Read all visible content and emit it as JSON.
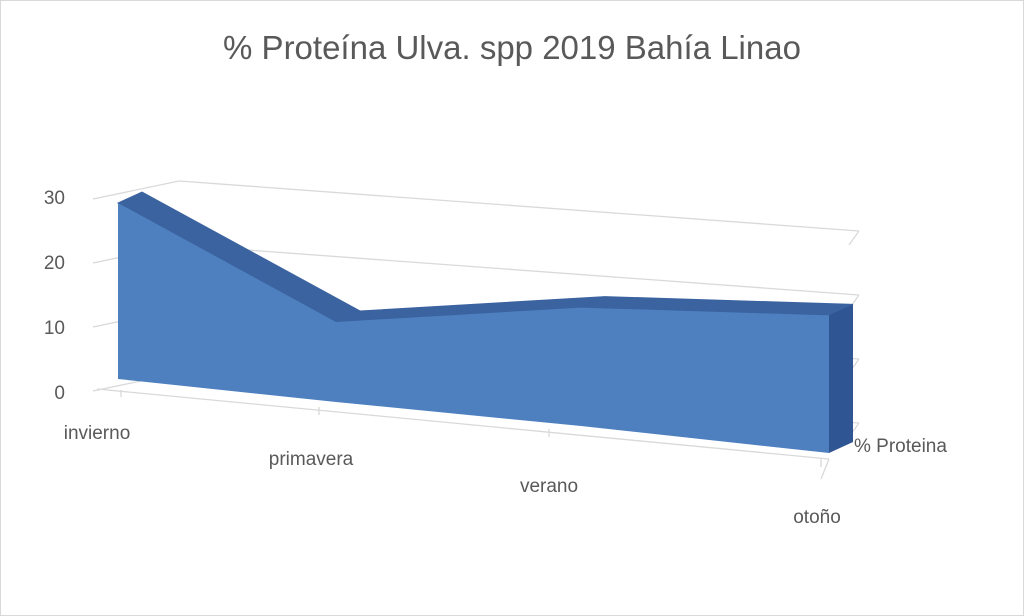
{
  "chart_data": {
    "type": "area",
    "title": "% Proteína Ulva. spp 2019 Bahía Linao",
    "categories": [
      "invierno",
      "primavera",
      "verano",
      "otoño"
    ],
    "series": [
      {
        "name": "% Proteina",
        "values": [
          27.5,
          12.5,
          18.5,
          21.5
        ]
      }
    ],
    "yticks": [
      "0",
      "10",
      "20",
      "30"
    ],
    "ylim": [
      0,
      30
    ],
    "colors": {
      "front": "#4e80c0",
      "top": "#3b63a0",
      "side": "#2f5592"
    },
    "grid": true,
    "depth_axis_label": "% Proteina"
  }
}
